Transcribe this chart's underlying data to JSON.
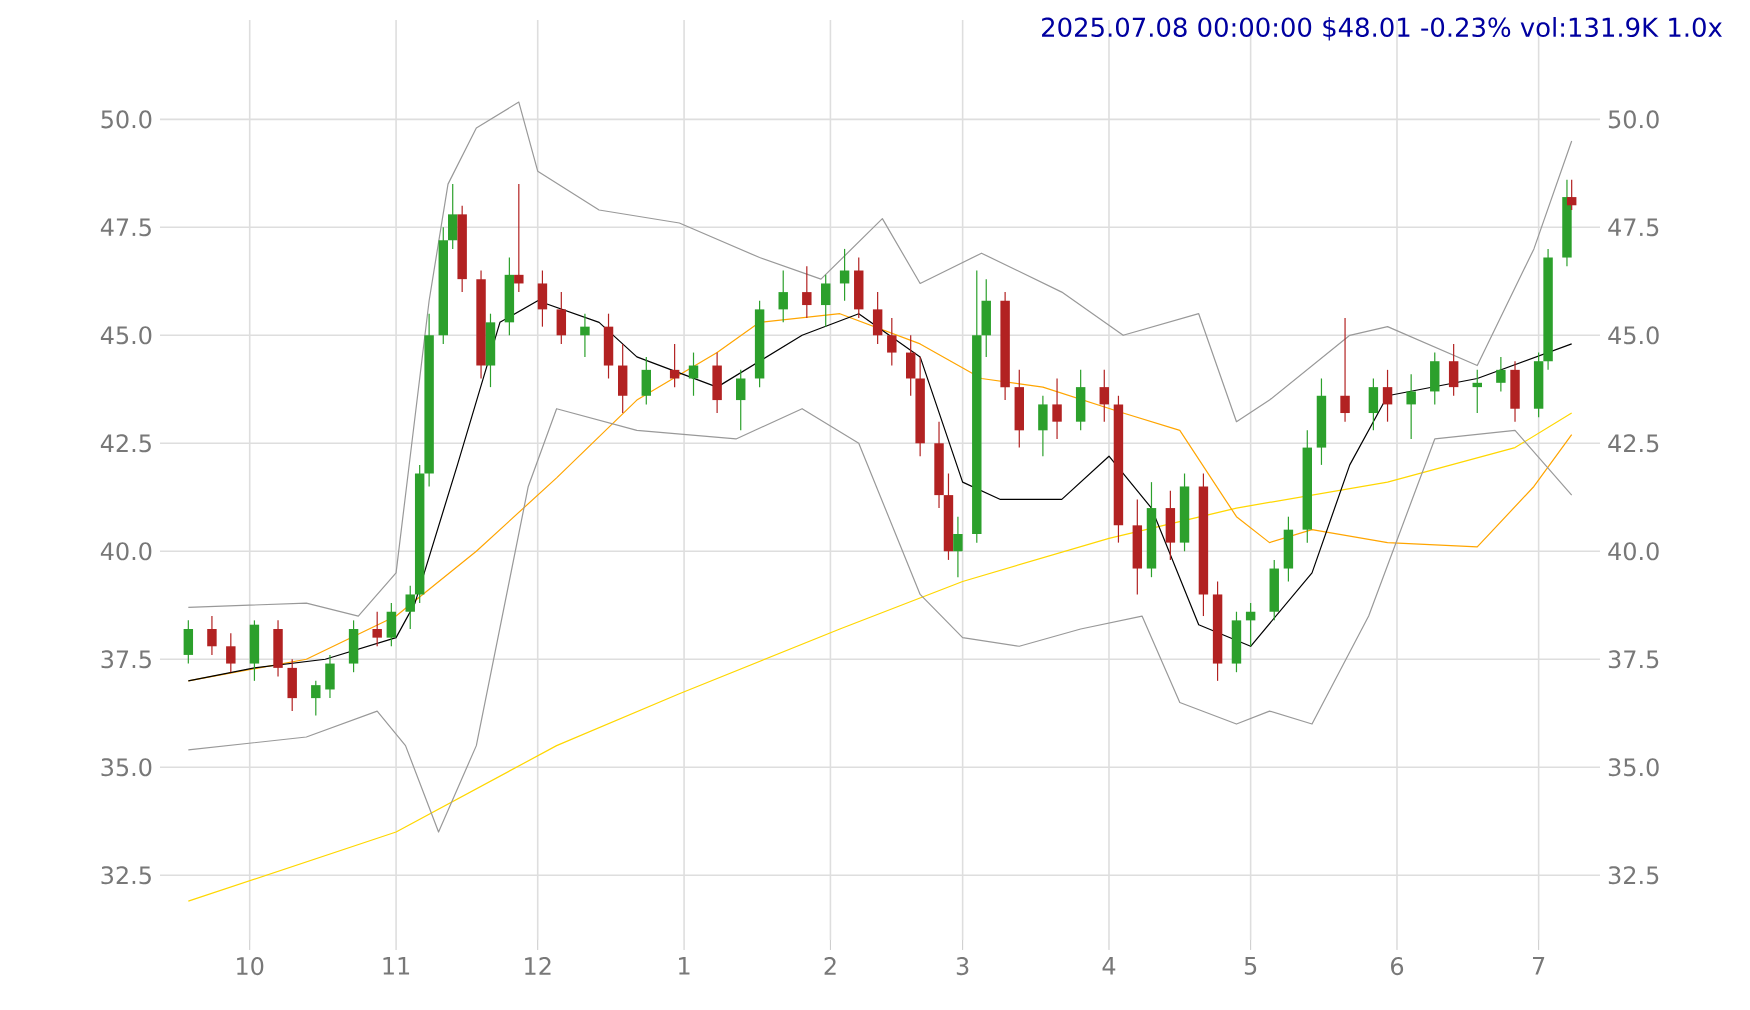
{
  "chart_data": {
    "type": "candlestick",
    "title": "2025.07.08 00:00:00 $48.01 -0.23% vol:131.9K 1.0x",
    "x": [
      "2024-09-18",
      "2024-09-23",
      "2024-09-27",
      "2024-10-02",
      "2024-10-07",
      "2024-10-10",
      "2024-10-15",
      "2024-10-18",
      "2024-10-23",
      "2024-10-28",
      "2024-10-31",
      "2024-11-04",
      "2024-11-06",
      "2024-11-08",
      "2024-11-11",
      "2024-11-13",
      "2024-11-15",
      "2024-11-19",
      "2024-11-21",
      "2024-11-25",
      "2024-11-27",
      "2024-12-02",
      "2024-12-06",
      "2024-12-11",
      "2024-12-16",
      "2024-12-19",
      "2024-12-24",
      "2024-12-30",
      "2025-01-03",
      "2025-01-08",
      "2025-01-13",
      "2025-01-17",
      "2025-01-22",
      "2025-01-27",
      "2025-01-31",
      "2025-02-04",
      "2025-02-07",
      "2025-02-11",
      "2025-02-14",
      "2025-02-18",
      "2025-02-20",
      "2025-02-24",
      "2025-02-26",
      "2025-02-28",
      "2025-03-04",
      "2025-03-06",
      "2025-03-10",
      "2025-03-13",
      "2025-03-18",
      "2025-03-21",
      "2025-03-26",
      "2025-03-31",
      "2025-04-03",
      "2025-04-07",
      "2025-04-10",
      "2025-04-14",
      "2025-04-17",
      "2025-04-21",
      "2025-04-24",
      "2025-04-28",
      "2025-05-01",
      "2025-05-06",
      "2025-05-09",
      "2025-05-13",
      "2025-05-16",
      "2025-05-21",
      "2025-05-27",
      "2025-05-30",
      "2025-06-04",
      "2025-06-09",
      "2025-06-13",
      "2025-06-18",
      "2025-06-23",
      "2025-06-26",
      "2025-07-01",
      "2025-07-03",
      "2025-07-07",
      "2025-07-08"
    ],
    "ohlc": [
      [
        37.6,
        38.4,
        37.4,
        38.2
      ],
      [
        38.2,
        38.5,
        37.6,
        37.8
      ],
      [
        37.8,
        38.1,
        37.2,
        37.4
      ],
      [
        37.4,
        38.4,
        37.0,
        38.3
      ],
      [
        38.2,
        38.4,
        37.1,
        37.3
      ],
      [
        37.3,
        37.5,
        36.3,
        36.6
      ],
      [
        36.6,
        37.0,
        36.2,
        36.9
      ],
      [
        36.8,
        37.6,
        36.6,
        37.4
      ],
      [
        37.4,
        38.4,
        37.2,
        38.2
      ],
      [
        38.2,
        38.6,
        37.8,
        38.0
      ],
      [
        38.0,
        38.8,
        37.8,
        38.6
      ],
      [
        38.6,
        39.2,
        38.2,
        39.0
      ],
      [
        39.0,
        42.0,
        38.8,
        41.8
      ],
      [
        41.8,
        45.5,
        41.5,
        45.0
      ],
      [
        45.0,
        47.5,
        44.8,
        47.2
      ],
      [
        47.2,
        48.5,
        47.0,
        47.8
      ],
      [
        47.8,
        48.0,
        46.0,
        46.3
      ],
      [
        46.3,
        46.5,
        44.0,
        44.3
      ],
      [
        44.3,
        45.5,
        43.8,
        45.3
      ],
      [
        45.3,
        46.8,
        45.0,
        46.4
      ],
      [
        46.4,
        48.5,
        46.0,
        46.2
      ],
      [
        46.2,
        46.5,
        45.2,
        45.6
      ],
      [
        45.6,
        46.0,
        44.8,
        45.0
      ],
      [
        45.0,
        45.5,
        44.5,
        45.2
      ],
      [
        45.2,
        45.5,
        44.0,
        44.3
      ],
      [
        44.3,
        44.8,
        43.2,
        43.6
      ],
      [
        43.6,
        44.5,
        43.4,
        44.2
      ],
      [
        44.2,
        44.8,
        43.8,
        44.0
      ],
      [
        44.0,
        44.6,
        43.6,
        44.3
      ],
      [
        44.3,
        44.6,
        43.2,
        43.5
      ],
      [
        43.5,
        44.2,
        42.8,
        44.0
      ],
      [
        44.0,
        45.8,
        43.8,
        45.6
      ],
      [
        45.6,
        46.5,
        45.3,
        46.0
      ],
      [
        46.0,
        46.6,
        45.4,
        45.7
      ],
      [
        45.7,
        46.4,
        45.2,
        46.2
      ],
      [
        46.2,
        47.0,
        45.8,
        46.5
      ],
      [
        46.5,
        46.8,
        45.4,
        45.6
      ],
      [
        45.6,
        46.0,
        44.8,
        45.0
      ],
      [
        45.0,
        45.4,
        44.3,
        44.6
      ],
      [
        44.6,
        45.0,
        43.6,
        44.0
      ],
      [
        44.0,
        44.5,
        42.2,
        42.5
      ],
      [
        42.5,
        43.0,
        41.0,
        41.3
      ],
      [
        41.3,
        41.8,
        39.8,
        40.0
      ],
      [
        40.0,
        40.8,
        39.4,
        40.4
      ],
      [
        40.4,
        46.5,
        40.2,
        45.0
      ],
      [
        45.0,
        46.3,
        44.5,
        45.8
      ],
      [
        45.8,
        46.0,
        43.5,
        43.8
      ],
      [
        43.8,
        44.2,
        42.4,
        42.8
      ],
      [
        42.8,
        43.6,
        42.2,
        43.4
      ],
      [
        43.4,
        44.0,
        42.6,
        43.0
      ],
      [
        43.0,
        44.2,
        42.8,
        43.8
      ],
      [
        43.8,
        44.2,
        43.0,
        43.4
      ],
      [
        43.4,
        43.6,
        40.2,
        40.6
      ],
      [
        40.6,
        41.2,
        39.0,
        39.6
      ],
      [
        39.6,
        41.6,
        39.4,
        41.0
      ],
      [
        41.0,
        41.4,
        39.8,
        40.2
      ],
      [
        40.2,
        41.8,
        40.0,
        41.5
      ],
      [
        41.5,
        41.8,
        38.5,
        39.0
      ],
      [
        39.0,
        39.3,
        37.0,
        37.4
      ],
      [
        37.4,
        38.6,
        37.2,
        38.4
      ],
      [
        38.4,
        38.8,
        37.8,
        38.6
      ],
      [
        38.6,
        39.8,
        38.4,
        39.6
      ],
      [
        39.6,
        40.8,
        39.3,
        40.5
      ],
      [
        40.5,
        42.8,
        40.2,
        42.4
      ],
      [
        42.4,
        44.0,
        42.0,
        43.6
      ],
      [
        43.6,
        45.4,
        43.0,
        43.2
      ],
      [
        43.2,
        44.0,
        42.8,
        43.8
      ],
      [
        43.8,
        44.2,
        43.0,
        43.4
      ],
      [
        43.4,
        44.1,
        42.6,
        43.7
      ],
      [
        43.7,
        44.6,
        43.4,
        44.4
      ],
      [
        44.4,
        44.8,
        43.6,
        43.8
      ],
      [
        43.8,
        44.2,
        43.2,
        43.9
      ],
      [
        43.9,
        44.5,
        43.7,
        44.2
      ],
      [
        44.2,
        44.4,
        43.0,
        43.3
      ],
      [
        43.3,
        44.6,
        43.1,
        44.4
      ],
      [
        44.4,
        47.0,
        44.2,
        46.8
      ],
      [
        46.8,
        48.6,
        46.6,
        48.2
      ],
      [
        48.2,
        48.6,
        47.9,
        48.01
      ]
    ],
    "colors": [
      "#2ca02c",
      "#b22222",
      "#b22222",
      "#2ca02c",
      "#b22222",
      "#b22222",
      "#2ca02c",
      "#2ca02c",
      "#2ca02c",
      "#b22222",
      "#2ca02c",
      "#2ca02c",
      "#2ca02c",
      "#2ca02c",
      "#2ca02c",
      "#2ca02c",
      "#b22222",
      "#b22222",
      "#2ca02c",
      "#2ca02c",
      "#b22222",
      "#b22222",
      "#b22222",
      "#2ca02c",
      "#b22222",
      "#b22222",
      "#2ca02c",
      "#b22222",
      "#2ca02c",
      "#b22222",
      "#2ca02c",
      "#2ca02c",
      "#2ca02c",
      "#b22222",
      "#2ca02c",
      "#2ca02c",
      "#b22222",
      "#b22222",
      "#b22222",
      "#b22222",
      "#b22222",
      "#b22222",
      "#b22222",
      "#2ca02c",
      "#2ca02c",
      "#2ca02c",
      "#b22222",
      "#b22222",
      "#2ca02c",
      "#b22222",
      "#2ca02c",
      "#b22222",
      "#b22222",
      "#b22222",
      "#2ca02c",
      "#b22222",
      "#2ca02c",
      "#b22222",
      "#b22222",
      "#2ca02c",
      "#2ca02c",
      "#2ca02c",
      "#2ca02c",
      "#2ca02c",
      "#2ca02c",
      "#b22222",
      "#2ca02c",
      "#b22222",
      "#2ca02c",
      "#2ca02c",
      "#b22222",
      "#2ca02c",
      "#2ca02c",
      "#b22222",
      "#2ca02c",
      "#2ca02c",
      "#2ca02c",
      "#b22222"
    ],
    "series": [
      {
        "type": "line",
        "color": "#ffd700",
        "x": [
          "2024-09-18",
          "2024-11-01",
          "2024-12-05",
          "2024-12-31",
          "2025-02-03",
          "2025-03-01",
          "2025-04-01",
          "2025-04-28",
          "2025-05-30",
          "2025-06-26",
          "2025-07-08"
        ],
        "values": [
          31.9,
          33.5,
          35.5,
          36.7,
          38.2,
          39.3,
          40.3,
          41.0,
          41.6,
          42.4,
          43.2
        ]
      },
      {
        "type": "line",
        "color": "#ffa500",
        "x": [
          "2024-09-18",
          "2024-10-13",
          "2024-11-01",
          "2024-11-18",
          "2024-12-05",
          "2024-12-22",
          "2025-01-08",
          "2025-01-17",
          "2025-02-03",
          "2025-02-20",
          "2025-03-05",
          "2025-03-18",
          "2025-04-04",
          "2025-04-16",
          "2025-04-28",
          "2025-05-05",
          "2025-05-14",
          "2025-05-30",
          "2025-06-18",
          "2025-06-30",
          "2025-07-08"
        ],
        "values": [
          37.0,
          37.5,
          38.5,
          40.0,
          41.7,
          43.5,
          44.6,
          45.3,
          45.5,
          44.8,
          44.0,
          43.8,
          43.2,
          42.8,
          40.8,
          40.2,
          40.5,
          40.2,
          40.1,
          41.5,
          42.7
        ]
      },
      {
        "type": "line",
        "color": "#000000",
        "x": [
          "2024-09-18",
          "2024-10-02",
          "2024-10-17",
          "2024-11-01",
          "2024-11-05",
          "2024-11-14",
          "2024-11-23",
          "2024-12-01",
          "2024-12-14",
          "2024-12-22",
          "2025-01-08",
          "2025-01-26",
          "2025-02-07",
          "2025-02-20",
          "2025-03-01",
          "2025-03-09",
          "2025-03-22",
          "2025-04-01",
          "2025-04-10",
          "2025-04-20",
          "2025-05-01",
          "2025-05-14",
          "2025-05-22",
          "2025-05-30",
          "2025-06-18",
          "2025-07-08"
        ],
        "values": [
          37.0,
          37.3,
          37.5,
          38.0,
          38.8,
          42.0,
          45.3,
          45.8,
          45.3,
          44.5,
          43.8,
          45.0,
          45.5,
          44.5,
          41.6,
          41.2,
          41.2,
          42.2,
          41.0,
          38.3,
          37.8,
          39.5,
          42.0,
          43.6,
          44.0,
          44.8
        ]
      },
      {
        "type": "line",
        "color": "#999999",
        "x": [
          "2024-09-18",
          "2024-10-13",
          "2024-10-24",
          "2024-11-01",
          "2024-11-08",
          "2024-11-12",
          "2024-11-18",
          "2024-11-27",
          "2024-12-01",
          "2024-12-14",
          "2024-12-31",
          "2025-01-17",
          "2025-01-30",
          "2025-02-12",
          "2025-02-20",
          "2025-03-05",
          "2025-03-22",
          "2025-04-04",
          "2025-04-20",
          "2025-04-28",
          "2025-05-05",
          "2025-05-22",
          "2025-05-30",
          "2025-06-18",
          "2025-06-30",
          "2025-07-08"
        ],
        "values": [
          38.7,
          38.8,
          38.5,
          39.5,
          45.8,
          48.5,
          49.8,
          50.4,
          48.8,
          47.9,
          47.6,
          46.8,
          46.3,
          47.7,
          46.2,
          46.9,
          46.0,
          45.0,
          45.5,
          43.0,
          43.5,
          45.0,
          45.2,
          44.3,
          47.0,
          49.5
        ]
      },
      {
        "type": "line",
        "color": "#999999",
        "x": [
          "2024-09-18",
          "2024-10-13",
          "2024-10-28",
          "2024-11-03",
          "2024-11-10",
          "2024-11-18",
          "2024-11-29",
          "2024-12-05",
          "2024-12-22",
          "2025-01-12",
          "2025-01-26",
          "2025-02-07",
          "2025-02-20",
          "2025-03-01",
          "2025-03-13",
          "2025-03-26",
          "2025-04-08",
          "2025-04-16",
          "2025-04-28",
          "2025-05-05",
          "2025-05-14",
          "2025-05-26",
          "2025-06-09",
          "2025-06-26",
          "2025-07-08"
        ],
        "values": [
          35.4,
          35.7,
          36.3,
          35.5,
          33.5,
          35.5,
          41.5,
          43.3,
          42.8,
          42.6,
          43.3,
          42.5,
          39.0,
          38.0,
          37.8,
          38.2,
          38.5,
          36.5,
          36.0,
          36.3,
          36.0,
          38.5,
          42.6,
          42.8,
          41.3
        ]
      }
    ],
    "xlim": [
      "2024-09-12",
      "2025-07-14"
    ],
    "xticks": [
      {
        "value": "2024-10-01",
        "label": "10"
      },
      {
        "value": "2024-11-01",
        "label": "11"
      },
      {
        "value": "2024-12-01",
        "label": "12"
      },
      {
        "value": "2025-01-01",
        "label": "1"
      },
      {
        "value": "2025-02-01",
        "label": "2"
      },
      {
        "value": "2025-03-01",
        "label": "3"
      },
      {
        "value": "2025-04-01",
        "label": "4"
      },
      {
        "value": "2025-05-01",
        "label": "5"
      },
      {
        "value": "2025-06-01",
        "label": "6"
      },
      {
        "value": "2025-07-01",
        "label": "7"
      }
    ],
    "ylim": [
      31.0,
      52.3
    ],
    "yticks": [
      {
        "value": 32.5,
        "label": "32.5"
      },
      {
        "value": 35,
        "label": "35.0"
      },
      {
        "value": 37.5,
        "label": "37.5"
      },
      {
        "value": 40,
        "label": "40.0"
      },
      {
        "value": 42.5,
        "label": "42.5"
      },
      {
        "value": 45,
        "label": "45.0"
      },
      {
        "value": 47.5,
        "label": "47.5"
      },
      {
        "value": 50,
        "label": "50.0"
      }
    ],
    "y2lim": [
      31.0,
      52.3
    ],
    "y2ticks": [
      {
        "value": 32.5,
        "label": "32.5"
      },
      {
        "value": 35,
        "label": "35.0"
      },
      {
        "value": 37.5,
        "label": "37.5"
      },
      {
        "value": 40,
        "label": "40.0"
      },
      {
        "value": 42.5,
        "label": "42.5"
      },
      {
        "value": 45,
        "label": "45.0"
      },
      {
        "value": 47.5,
        "label": "47.5"
      },
      {
        "value": 50,
        "label": "50.0"
      }
    ],
    "grid": true
  }
}
